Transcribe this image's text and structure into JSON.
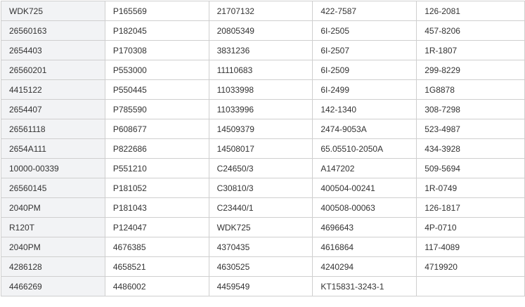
{
  "table": {
    "rows": [
      [
        "WDK725",
        "P165569",
        "21707132",
        "422-7587",
        "126-2081"
      ],
      [
        "26560163",
        "P182045",
        "20805349",
        "6I-2505",
        "457-8206"
      ],
      [
        "2654403",
        "P170308",
        "3831236",
        "6I-2507",
        "1R-1807"
      ],
      [
        "26560201",
        "P553000",
        "11110683",
        "6I-2509",
        "299-8229"
      ],
      [
        "4415122",
        "P550445",
        "11033998",
        "6I-2499",
        "1G8878"
      ],
      [
        "2654407",
        "P785590",
        "11033996",
        "142-1340",
        "308-7298"
      ],
      [
        "26561118",
        "P608677",
        "14509379",
        "2474-9053A",
        "523-4987"
      ],
      [
        "2654A111",
        "P822686",
        "14508017",
        "65.05510-2050A",
        "434-3928"
      ],
      [
        "10000-00339",
        "P551210",
        "C24650/3",
        "A147202",
        "509-5694"
      ],
      [
        "26560145",
        "P181052",
        "C30810/3",
        "400504-00241",
        "1R-0749"
      ],
      [
        "2040PM",
        "P181043",
        "C23440/1",
        "400508-00063",
        "126-1817"
      ],
      [
        "R120T",
        "P124047",
        "WDK725",
        "4696643",
        "4P-0710"
      ],
      [
        "2040PM",
        "4676385",
        "4370435",
        "4616864",
        "117-4089"
      ],
      [
        "4286128",
        "4658521",
        "4630525",
        "4240294",
        "4719920"
      ],
      [
        "4466269",
        "4486002",
        "4459549",
        "KT15831-3243-1",
        ""
      ]
    ]
  }
}
